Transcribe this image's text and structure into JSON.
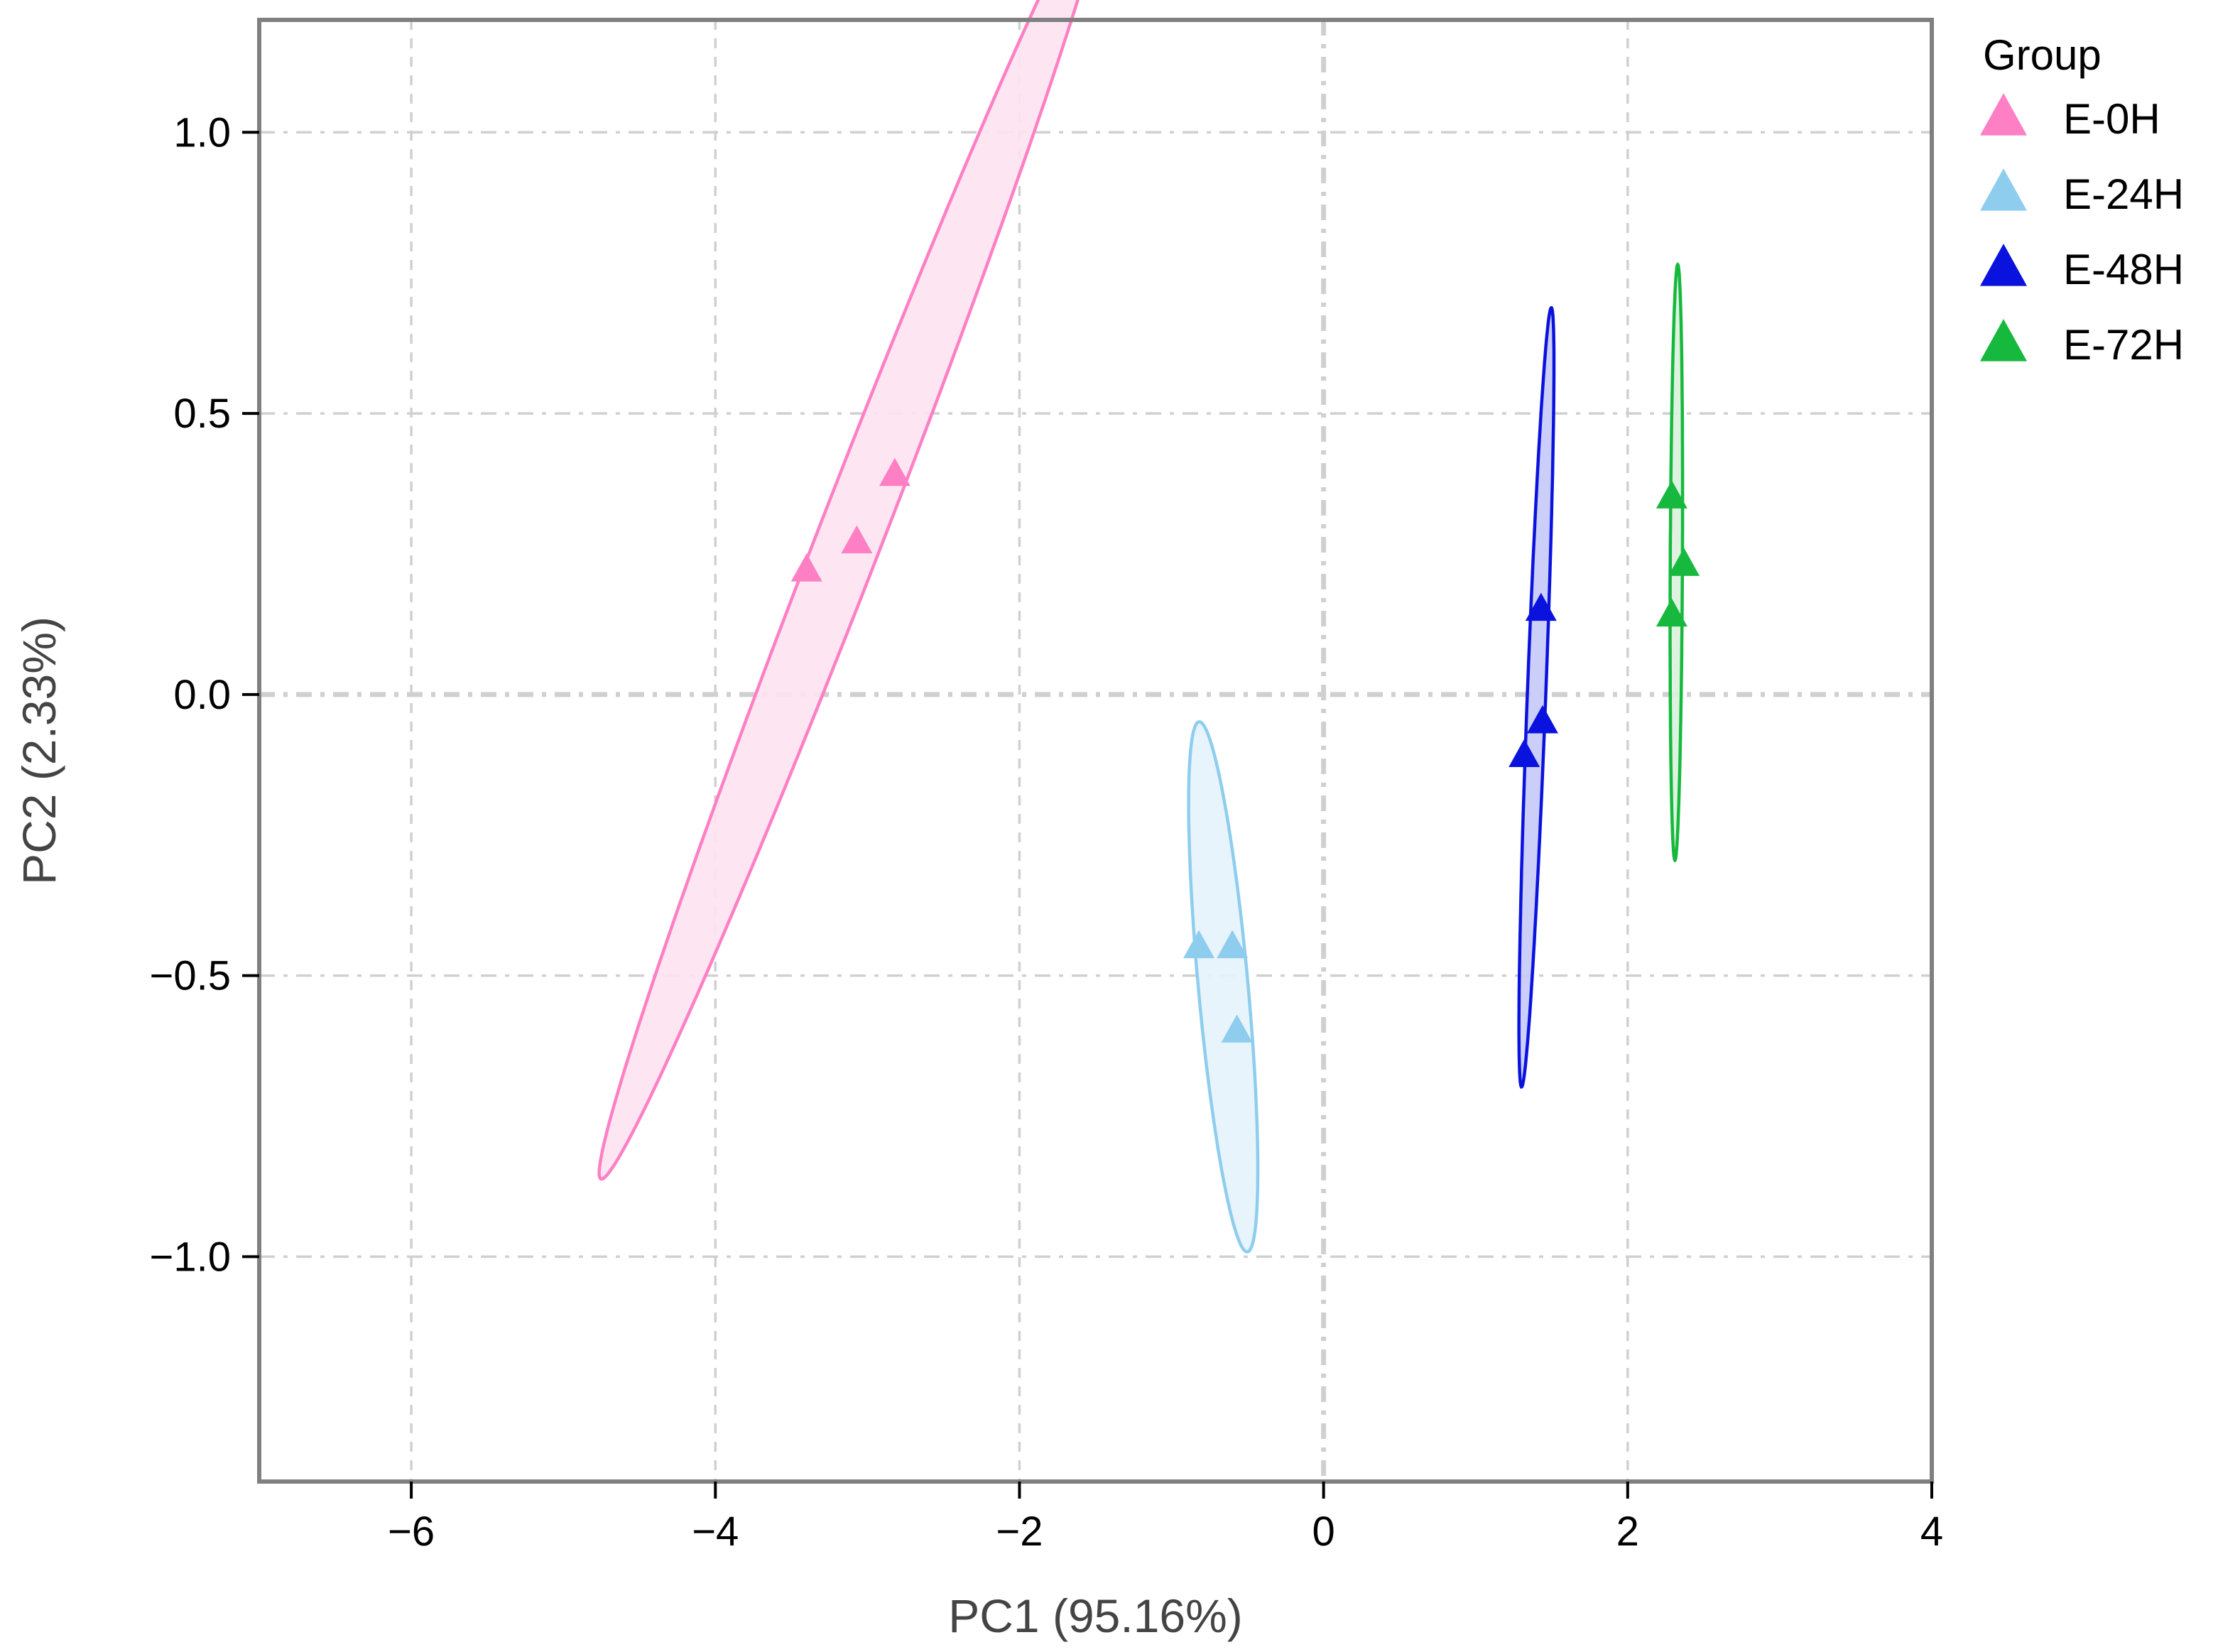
{
  "chart_data": {
    "type": "scatter",
    "xlabel": "PC1 (95.16%)",
    "ylabel": "PC2 (2.33%)",
    "xlim": [
      -7,
      4
    ],
    "ylim": [
      -1.4,
      1.2
    ],
    "xticks": [
      -6,
      -4,
      -2,
      0,
      2,
      4
    ],
    "yticks": [
      -1.0,
      -0.5,
      0.0,
      0.5,
      1.0
    ],
    "xtick_labels": [
      "−6",
      "−4",
      "−2",
      "0",
      "2",
      "4"
    ],
    "ytick_labels": [
      "−1.0",
      "−0.5",
      "0.0",
      "0.5",
      "1.0"
    ],
    "grid": true,
    "marker": "triangle",
    "legend": {
      "title": "Group",
      "position": "right-top"
    },
    "series": [
      {
        "name": "E-0H",
        "color": "#FF7FC4",
        "fill": "#FDE3F1",
        "points": [
          [
            -3.4,
            0.22
          ],
          [
            -3.07,
            0.27
          ],
          [
            -2.82,
            0.39
          ]
        ],
        "ellipse": {
          "cx": -3.1,
          "cy": 0.29,
          "rx": 2.02,
          "ry": 0.13,
          "angle_deg": 34.6
        }
      },
      {
        "name": "E-24H",
        "color": "#8ECDEE",
        "fill": "#E6F3FC",
        "points": [
          [
            -0.82,
            -0.45
          ],
          [
            -0.6,
            -0.45
          ],
          [
            -0.57,
            -0.6
          ]
        ],
        "ellipse": {
          "cx": -0.66,
          "cy": -0.52,
          "rx": 0.5,
          "ry": 0.155,
          "angle_deg": -69.5
        }
      },
      {
        "name": "E-48H",
        "color": "#0A12DD",
        "fill": "#C4C9F8",
        "points": [
          [
            1.43,
            0.15
          ],
          [
            1.44,
            -0.05
          ],
          [
            1.32,
            -0.11
          ]
        ],
        "ellipse": {
          "cx": 1.4,
          "cy": -0.005,
          "rx": 0.7,
          "ry": 0.06,
          "angle_deg": 81.9
        }
      },
      {
        "name": "E-72H",
        "color": "#16B93E",
        "fill": "#D9F1DC",
        "points": [
          [
            2.29,
            0.35
          ],
          [
            2.37,
            0.23
          ],
          [
            2.29,
            0.14
          ]
        ],
        "ellipse": {
          "cx": 2.32,
          "cy": 0.235,
          "rx": 0.53,
          "ry": 0.04,
          "angle_deg": 89.0
        }
      }
    ]
  }
}
